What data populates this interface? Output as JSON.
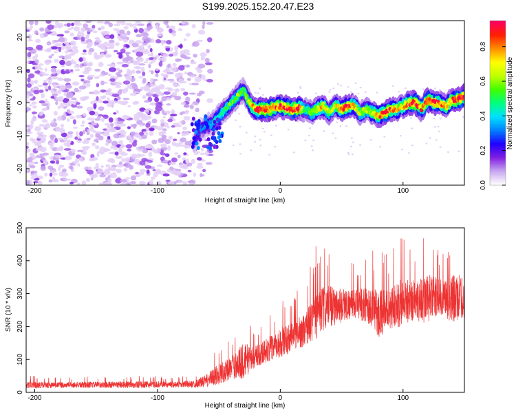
{
  "title": "S199.2025.152.20.47.E23",
  "chart_data": [
    {
      "type": "heatmap",
      "title": "S199.2025.152.20.47.E23",
      "xlabel": "Height of straight line (km)",
      "ylabel": "Frequency (Hz)",
      "xlim": [
        -207,
        150
      ],
      "ylim": [
        -25,
        25
      ],
      "xticks": [
        -200,
        -100,
        0,
        100
      ],
      "yticks": [
        -20,
        -10,
        0,
        10,
        20
      ],
      "colorbar": {
        "label": "Normalized spectral amplitude",
        "range": [
          0,
          0.95
        ],
        "ticks": [
          0.0,
          0.2,
          0.4,
          0.6,
          0.8
        ],
        "colormap": [
          "#ffffff",
          "#c8a8f0",
          "#8020e0",
          "#2000ff",
          "#0080ff",
          "#00e0ff",
          "#00ff80",
          "#40ff00",
          "#c0ff00",
          "#ffff00",
          "#ff9000",
          "#ff2000",
          "#ff0060"
        ]
      },
      "ridge": {
        "height_km": [
          -70,
          -65,
          -60,
          -55,
          -50,
          -45,
          -40,
          -35,
          -30,
          -25,
          -20,
          -10,
          0,
          10,
          15,
          20,
          25,
          30,
          35,
          40,
          45,
          50,
          55,
          60,
          65,
          70,
          75,
          80,
          85,
          90,
          95,
          100,
          105,
          110,
          115,
          120,
          125,
          130,
          135,
          140,
          145,
          150
        ],
        "frequency_hz": [
          -12,
          -8,
          -7,
          -6,
          -4,
          -2,
          0,
          2,
          4,
          0,
          -2,
          -2,
          -1,
          -2,
          -1.5,
          -2,
          -3,
          -2,
          -1,
          -3,
          -1,
          -2,
          -1,
          -1,
          -3,
          -2,
          -3,
          -4,
          -3,
          -2,
          -2,
          -1,
          0,
          0,
          -2,
          1,
          0,
          0,
          -1,
          1,
          1,
          2
        ],
        "peak_amplitude": [
          0.2,
          0.3,
          0.35,
          0.4,
          0.45,
          0.5,
          0.55,
          0.6,
          0.5,
          0.7,
          0.85,
          0.9,
          0.85,
          0.9,
          0.95,
          0.5,
          0.6,
          0.7,
          0.75,
          0.6,
          0.7,
          0.8,
          0.9,
          0.7,
          0.65,
          0.6,
          0.7,
          0.75,
          0.9,
          0.85,
          0.75,
          0.7,
          0.85,
          0.9,
          0.8,
          0.9,
          0.85,
          0.8,
          0.75,
          0.8,
          0.9,
          0.9
        ]
      },
      "noise_region_km": [
        -207,
        -65
      ]
    },
    {
      "type": "line",
      "xlabel": "Height of straight line (km)",
      "ylabel": "SNR (10 * v/v)",
      "xlim": [
        -207,
        150
      ],
      "ylim": [
        0,
        500
      ],
      "xticks": [
        -200,
        -100,
        0,
        100
      ],
      "yticks": [
        0,
        100,
        200,
        300,
        400,
        500
      ],
      "color": "#ee3333",
      "x": [
        -207,
        -180,
        -150,
        -120,
        -90,
        -70,
        -60,
        -50,
        -40,
        -30,
        -20,
        -10,
        0,
        10,
        20,
        30,
        40,
        50,
        60,
        70,
        80,
        90,
        100,
        110,
        120,
        130,
        140,
        150
      ],
      "y_mean": [
        22,
        22,
        23,
        23,
        24,
        25,
        35,
        55,
        75,
        95,
        110,
        130,
        150,
        170,
        190,
        240,
        260,
        265,
        270,
        265,
        240,
        255,
        275,
        280,
        285,
        290,
        285,
        290
      ],
      "y_max": [
        50,
        48,
        50,
        52,
        50,
        55,
        90,
        150,
        170,
        255,
        200,
        240,
        280,
        300,
        330,
        465,
        440,
        420,
        390,
        420,
        450,
        430,
        490,
        460,
        500,
        440,
        500,
        480
      ]
    }
  ]
}
